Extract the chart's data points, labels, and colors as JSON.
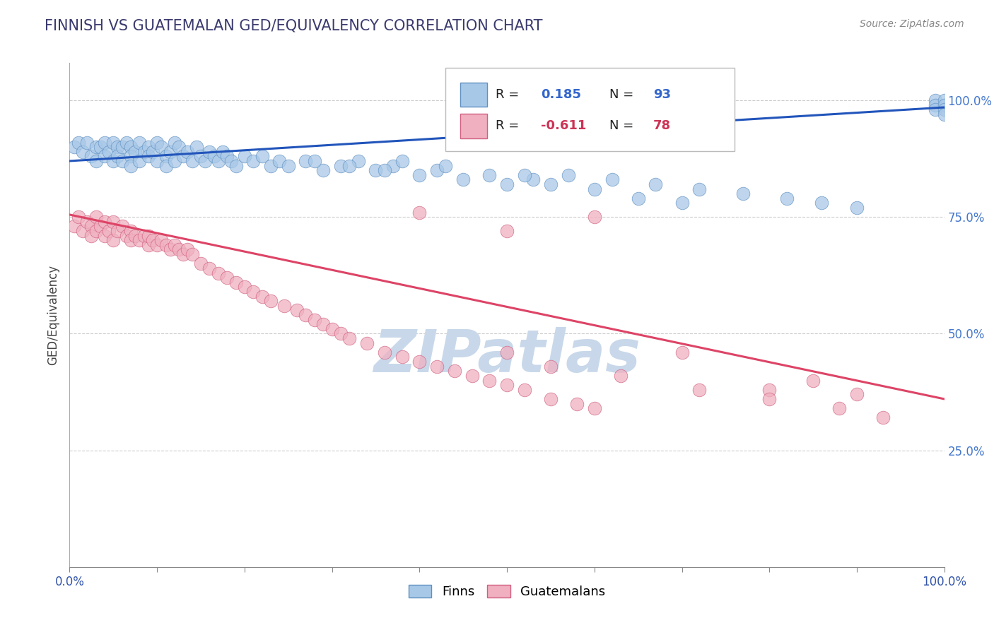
{
  "title": "FINNISH VS GUATEMALAN GED/EQUIVALENCY CORRELATION CHART",
  "source": "Source: ZipAtlas.com",
  "ylabel": "GED/Equivalency",
  "xlim": [
    0.0,
    1.0
  ],
  "ylim": [
    0.0,
    1.08
  ],
  "xtick_positions": [
    0.0,
    0.1,
    0.2,
    0.3,
    0.4,
    0.5,
    0.6,
    0.7,
    0.8,
    0.9,
    1.0
  ],
  "xtick_labels_show": [
    "0.0%",
    "",
    "",
    "",
    "",
    "",
    "",
    "",
    "",
    "",
    "100.0%"
  ],
  "ytick_positions": [
    0.25,
    0.5,
    0.75,
    1.0
  ],
  "ytick_labels": [
    "25.0%",
    "50.0%",
    "75.0%",
    "100.0%"
  ],
  "grid_color": "#cccccc",
  "background_color": "#ffffff",
  "title_color": "#3a3a6e",
  "title_fontsize": 15,
  "watermark_text": "ZIPatlas",
  "watermark_color": "#c8d8ea",
  "watermark_fontsize": 60,
  "legend_label1": "Finns",
  "legend_label2": "Guatemalans",
  "finn_color": "#a8c8e8",
  "finn_edge": "#6090c0",
  "guatemalan_color": "#f0b0c0",
  "guatemalan_edge": "#d06080",
  "finn_line_color": "#2255bb",
  "guatemalan_line_color": "#dd4466",
  "ytick_color": "#4477cc",
  "finn_intercept": 0.87,
  "finn_slope": 0.115,
  "guatemalan_intercept": 0.755,
  "guatemalan_slope": -0.395,
  "finn_scatter_x": [
    0.005,
    0.01,
    0.015,
    0.02,
    0.025,
    0.03,
    0.03,
    0.035,
    0.04,
    0.04,
    0.045,
    0.05,
    0.05,
    0.055,
    0.055,
    0.06,
    0.06,
    0.065,
    0.07,
    0.07,
    0.07,
    0.075,
    0.08,
    0.08,
    0.085,
    0.09,
    0.09,
    0.095,
    0.1,
    0.1,
    0.105,
    0.11,
    0.11,
    0.115,
    0.12,
    0.12,
    0.125,
    0.13,
    0.135,
    0.14,
    0.145,
    0.15,
    0.155,
    0.16,
    0.165,
    0.17,
    0.175,
    0.18,
    0.185,
    0.19,
    0.2,
    0.21,
    0.22,
    0.23,
    0.24,
    0.25,
    0.27,
    0.29,
    0.31,
    0.33,
    0.35,
    0.37,
    0.4,
    0.42,
    0.45,
    0.48,
    0.5,
    0.53,
    0.55,
    0.6,
    0.65,
    0.7,
    0.99,
    0.99,
    0.99,
    1.0,
    1.0,
    1.0,
    1.0,
    0.38,
    0.43,
    0.28,
    0.32,
    0.36,
    0.52,
    0.57,
    0.62,
    0.67,
    0.72,
    0.77,
    0.82,
    0.86,
    0.9
  ],
  "finn_scatter_y": [
    0.9,
    0.91,
    0.89,
    0.91,
    0.88,
    0.9,
    0.87,
    0.9,
    0.91,
    0.88,
    0.89,
    0.91,
    0.87,
    0.9,
    0.88,
    0.9,
    0.87,
    0.91,
    0.9,
    0.88,
    0.86,
    0.89,
    0.91,
    0.87,
    0.89,
    0.9,
    0.88,
    0.89,
    0.91,
    0.87,
    0.9,
    0.88,
    0.86,
    0.89,
    0.91,
    0.87,
    0.9,
    0.88,
    0.89,
    0.87,
    0.9,
    0.88,
    0.87,
    0.89,
    0.88,
    0.87,
    0.89,
    0.88,
    0.87,
    0.86,
    0.88,
    0.87,
    0.88,
    0.86,
    0.87,
    0.86,
    0.87,
    0.85,
    0.86,
    0.87,
    0.85,
    0.86,
    0.84,
    0.85,
    0.83,
    0.84,
    0.82,
    0.83,
    0.82,
    0.81,
    0.79,
    0.78,
    1.0,
    0.99,
    0.98,
    1.0,
    0.99,
    0.98,
    0.97,
    0.87,
    0.86,
    0.87,
    0.86,
    0.85,
    0.84,
    0.84,
    0.83,
    0.82,
    0.81,
    0.8,
    0.79,
    0.78,
    0.77
  ],
  "guatemalan_scatter_x": [
    0.005,
    0.01,
    0.015,
    0.02,
    0.025,
    0.025,
    0.03,
    0.03,
    0.035,
    0.04,
    0.04,
    0.045,
    0.05,
    0.05,
    0.055,
    0.06,
    0.065,
    0.07,
    0.07,
    0.075,
    0.08,
    0.085,
    0.09,
    0.09,
    0.095,
    0.1,
    0.105,
    0.11,
    0.115,
    0.12,
    0.125,
    0.13,
    0.135,
    0.14,
    0.15,
    0.16,
    0.17,
    0.18,
    0.19,
    0.2,
    0.21,
    0.22,
    0.23,
    0.245,
    0.26,
    0.27,
    0.28,
    0.29,
    0.3,
    0.31,
    0.32,
    0.34,
    0.36,
    0.38,
    0.4,
    0.42,
    0.44,
    0.46,
    0.48,
    0.5,
    0.52,
    0.55,
    0.58,
    0.6,
    0.4,
    0.5,
    0.6,
    0.7,
    0.8,
    0.85,
    0.9,
    0.5,
    0.55,
    0.63,
    0.72,
    0.8,
    0.88,
    0.93
  ],
  "guatemalan_scatter_y": [
    0.73,
    0.75,
    0.72,
    0.74,
    0.73,
    0.71,
    0.75,
    0.72,
    0.73,
    0.74,
    0.71,
    0.72,
    0.74,
    0.7,
    0.72,
    0.73,
    0.71,
    0.72,
    0.7,
    0.71,
    0.7,
    0.71,
    0.69,
    0.71,
    0.7,
    0.69,
    0.7,
    0.69,
    0.68,
    0.69,
    0.68,
    0.67,
    0.68,
    0.67,
    0.65,
    0.64,
    0.63,
    0.62,
    0.61,
    0.6,
    0.59,
    0.58,
    0.57,
    0.56,
    0.55,
    0.54,
    0.53,
    0.52,
    0.51,
    0.5,
    0.49,
    0.48,
    0.46,
    0.45,
    0.44,
    0.43,
    0.42,
    0.41,
    0.4,
    0.39,
    0.38,
    0.36,
    0.35,
    0.34,
    0.76,
    0.72,
    0.75,
    0.46,
    0.38,
    0.4,
    0.37,
    0.46,
    0.43,
    0.41,
    0.38,
    0.36,
    0.34,
    0.32
  ]
}
